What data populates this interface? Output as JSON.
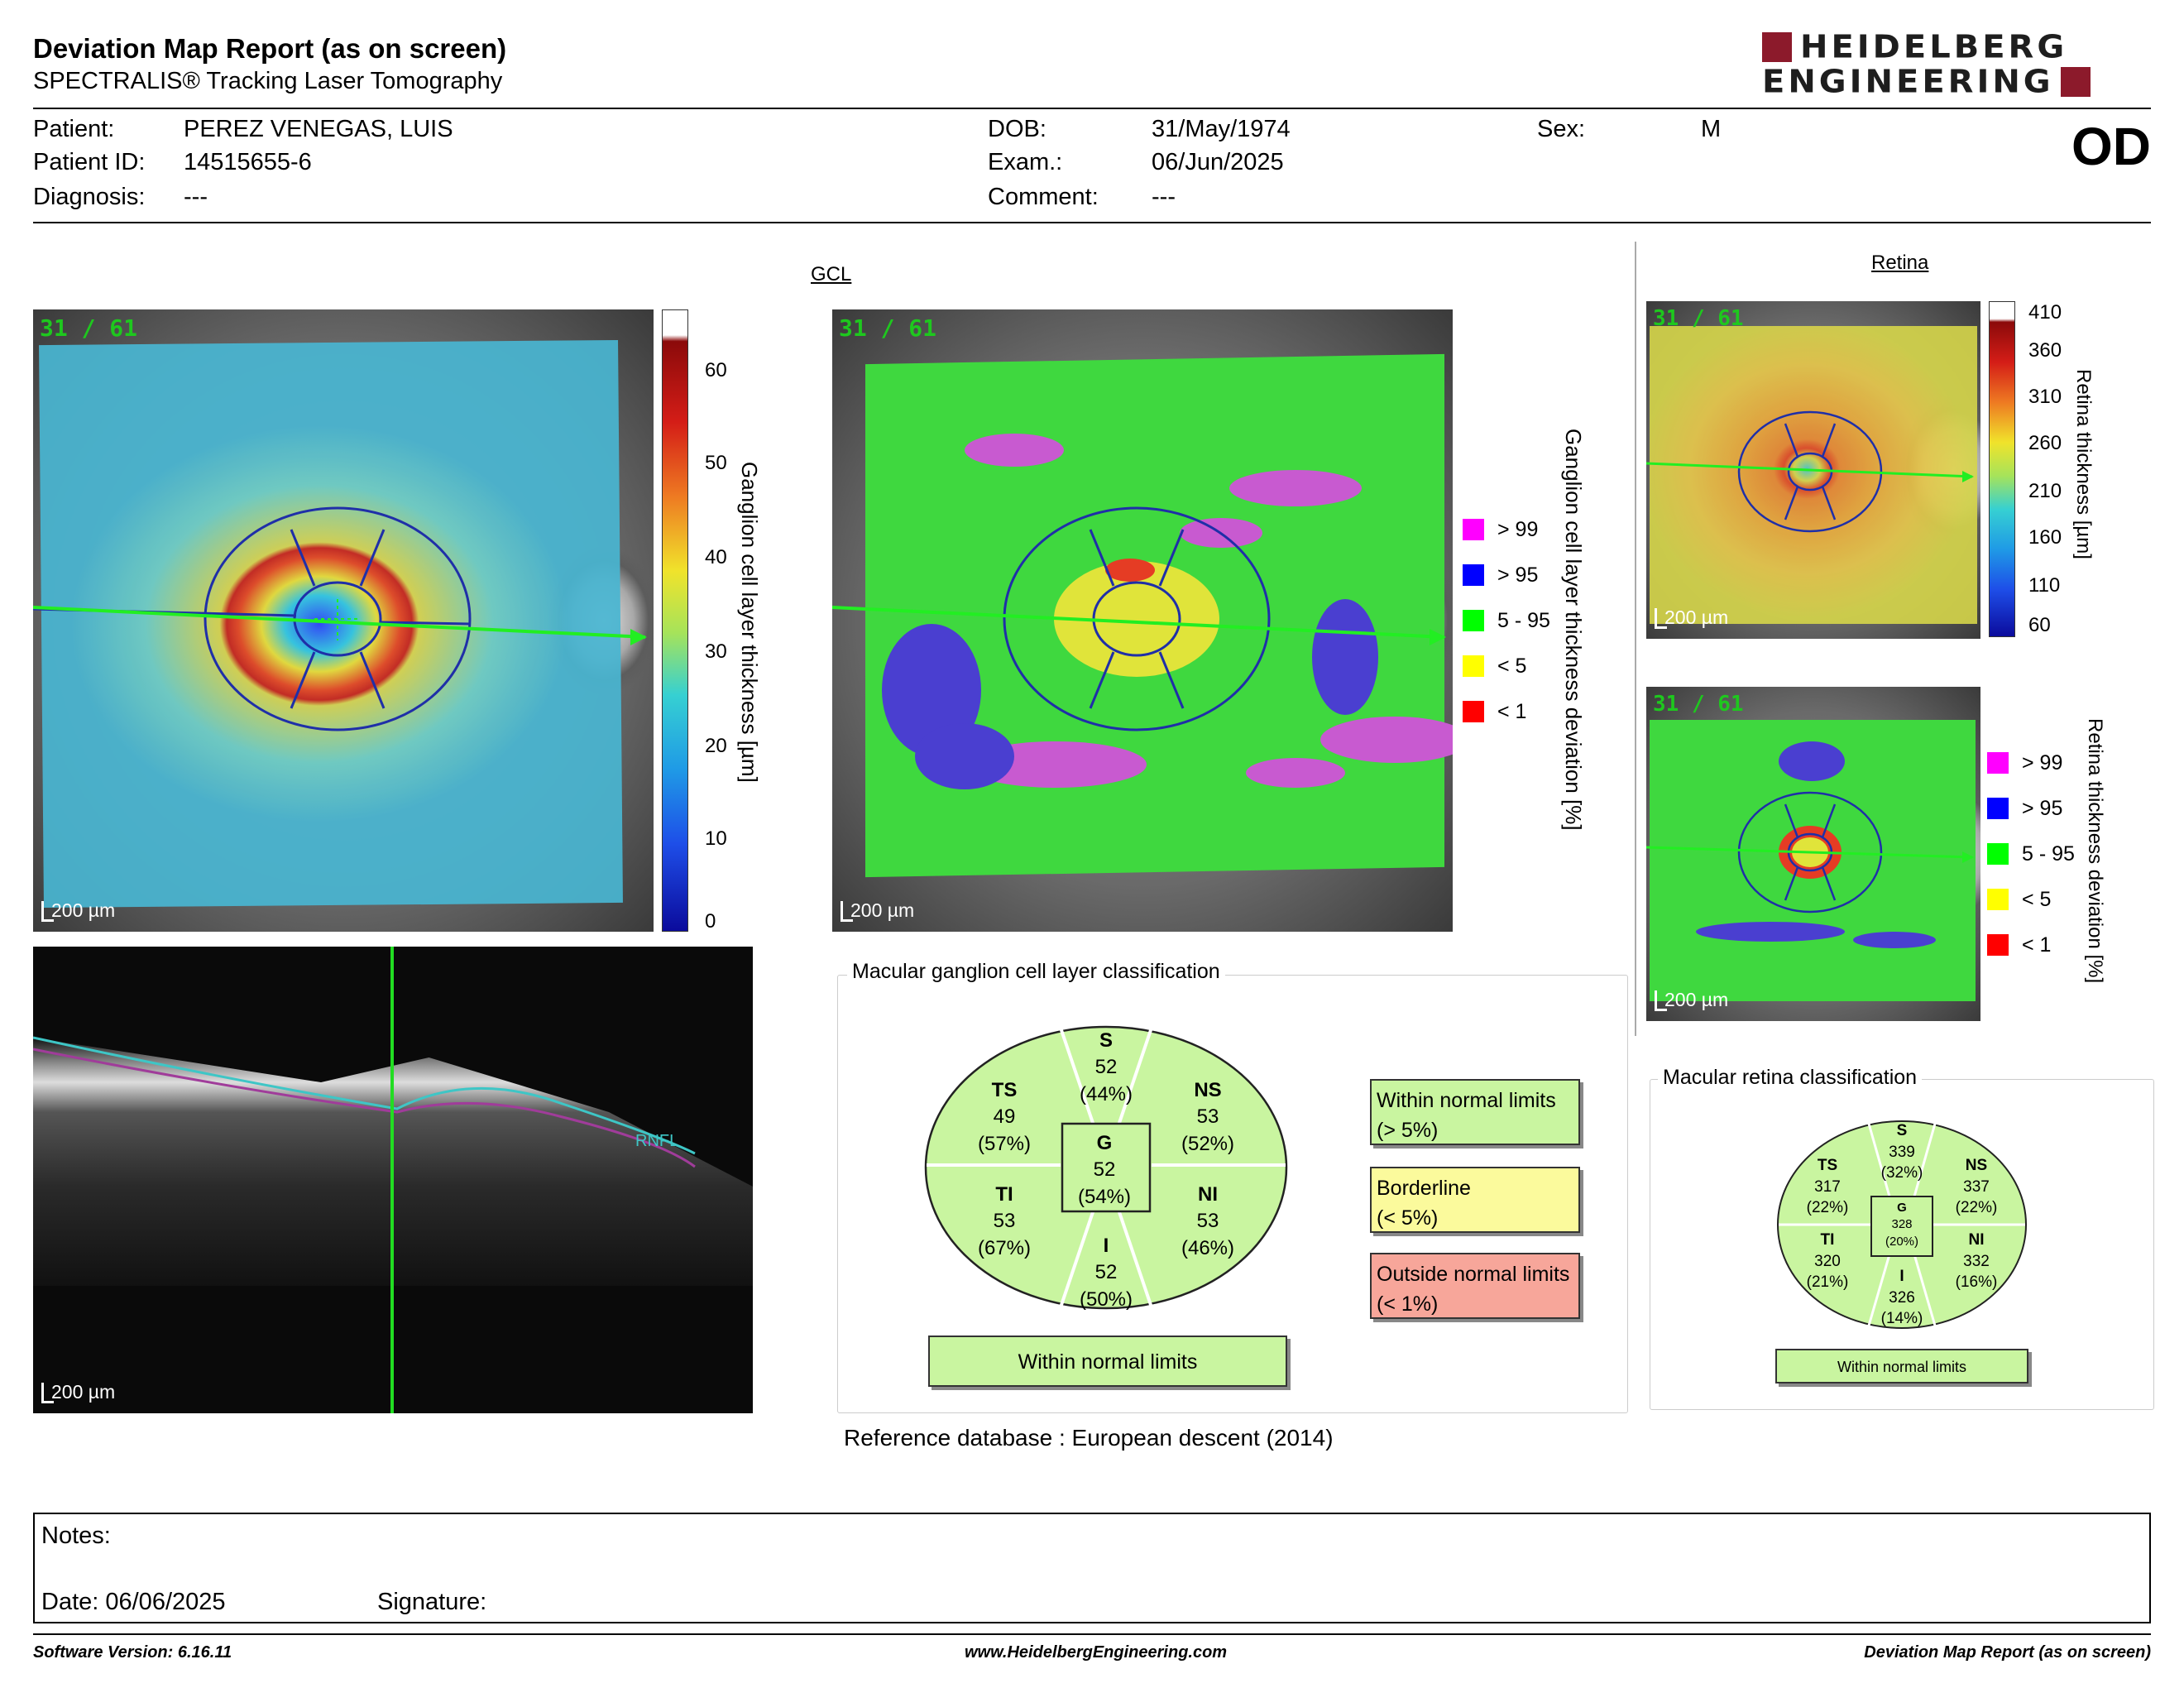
{
  "header": {
    "title": "Deviation Map Report (as on screen)",
    "subtitle": "SPECTRALIS® Tracking Laser Tomography",
    "logo_line1": "HEIDELBERG",
    "logo_line2": "ENGINEERING",
    "eye": "OD"
  },
  "patient": {
    "patient_label": "Patient:",
    "patient": "PEREZ VENEGAS, LUIS",
    "id_label": "Patient ID:",
    "id": "14515655-6",
    "diagnosis_label": "Diagnosis:",
    "diagnosis": "---",
    "dob_label": "DOB:",
    "dob": "31/May/1974",
    "exam_label": "Exam.:",
    "exam": "06/Jun/2025",
    "comment_label": "Comment:",
    "comment": "---",
    "sex_label": "Sex:",
    "sex": "M"
  },
  "gcl": {
    "section_title": "GCL",
    "frame": "31 / 61",
    "scale": "200 µm",
    "thickness_axis": "Ganglion cell layer thickness [µm]",
    "thickness_ticks": [
      "60",
      "50",
      "40",
      "30",
      "20",
      "10",
      "0"
    ],
    "deviation_axis": "Ganglion cell layer thickness deviation [%]",
    "legend": [
      {
        "label": "> 99",
        "color": "#ff00ff"
      },
      {
        "label": "> 95",
        "color": "#0000ff"
      },
      {
        "label": "5 - 95",
        "color": "#00ff00"
      },
      {
        "label": "< 5",
        "color": "#ffff00"
      },
      {
        "label": "< 1",
        "color": "#ff0000"
      }
    ],
    "bscan_label": "RNFL"
  },
  "retina": {
    "section_title": "Retina",
    "frame": "31 / 61",
    "scale": "200 µm",
    "thickness_axis": "Retina thickness [µm]",
    "thickness_ticks": [
      "410",
      "360",
      "310",
      "260",
      "210",
      "160",
      "110",
      "60"
    ],
    "deviation_axis": "Retina thickness deviation [%]",
    "legend": [
      {
        "label": "> 99",
        "color": "#ff00ff"
      },
      {
        "label": "> 95",
        "color": "#0000ff"
      },
      {
        "label": "5 - 95",
        "color": "#00ff00"
      },
      {
        "label": "< 5",
        "color": "#ffff00"
      },
      {
        "label": "< 1",
        "color": "#ff0000"
      }
    ]
  },
  "gcl_classification": {
    "title": "Macular ganglion cell layer classification",
    "S": {
      "name": "S",
      "value": "52",
      "pct": "(44%)"
    },
    "TS": {
      "name": "TS",
      "value": "49",
      "pct": "(57%)"
    },
    "NS": {
      "name": "NS",
      "value": "53",
      "pct": "(52%)"
    },
    "G": {
      "name": "G",
      "value": "52",
      "pct": "(54%)"
    },
    "TI": {
      "name": "TI",
      "value": "53",
      "pct": "(67%)"
    },
    "NI": {
      "name": "NI",
      "value": "53",
      "pct": "(46%)"
    },
    "I": {
      "name": "I",
      "value": "52",
      "pct": "(50%)"
    },
    "result": "Within normal limits"
  },
  "legend_boxes": {
    "within_1": "Within normal limits",
    "within_2": "(> 5%)",
    "border_1": "Borderline",
    "border_2": "(< 5%)",
    "outside_1": "Outside normal limits",
    "outside_2": "(< 1%)"
  },
  "retina_classification": {
    "title": "Macular retina classification",
    "S": {
      "name": "S",
      "value": "339",
      "pct": "(32%)"
    },
    "TS": {
      "name": "TS",
      "value": "317",
      "pct": "(22%)"
    },
    "NS": {
      "name": "NS",
      "value": "337",
      "pct": "(22%)"
    },
    "G": {
      "name": "G",
      "value": "328",
      "pct": "(20%)"
    },
    "TI": {
      "name": "TI",
      "value": "320",
      "pct": "(21%)"
    },
    "NI": {
      "name": "NI",
      "value": "332",
      "pct": "(16%)"
    },
    "I": {
      "name": "I",
      "value": "326",
      "pct": "(14%)"
    },
    "result": "Within normal limits"
  },
  "reference": {
    "label": "Reference database :",
    "value": "European descent (2014)"
  },
  "notes": {
    "notes_label": "Notes:",
    "date": "Date: 06/06/2025",
    "signature": "Signature:"
  },
  "footer": {
    "software": "Software Version: 6.16.11",
    "website": "www.HeidelbergEngineering.com",
    "report": "Deviation Map Report (as on screen)"
  }
}
